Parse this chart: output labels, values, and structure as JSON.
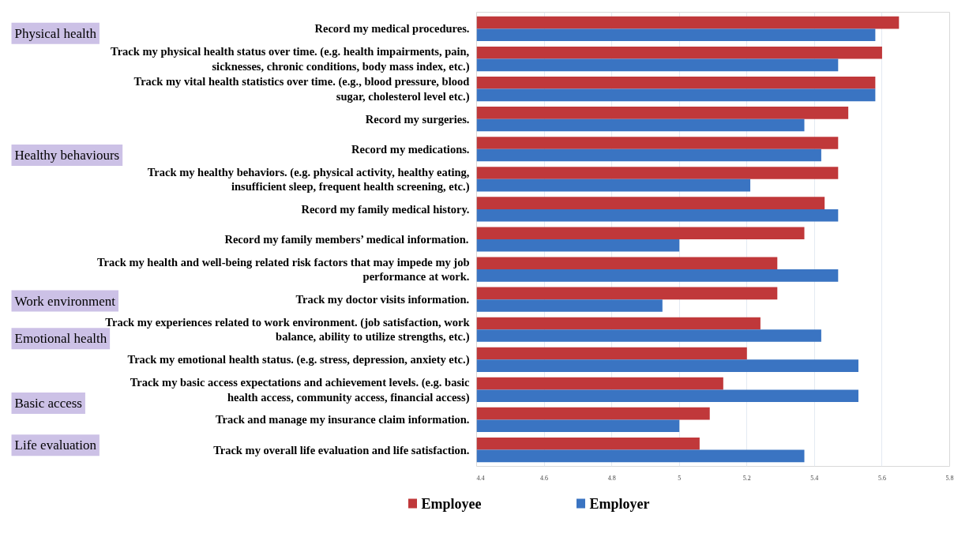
{
  "chart_data": {
    "type": "bar",
    "orientation": "horizontal",
    "categories": [
      "Record my medical procedures.",
      "Track my physical health status over time. (e.g. health impairments, pain, sicknesses, chronic conditions, body mass index, etc.)",
      "Track my vital health statistics over time. (e.g., blood pressure, blood sugar, cholesterol level etc.)",
      "Record my surgeries.",
      "Record my medications.",
      "Track my healthy behaviors. (e.g. physical activity, healthy eating, insufficient sleep, frequent health screening, etc.)",
      "Record my family medical history.",
      "Record my family members’ medical information.",
      "Track my health and well-being related risk factors that may impede my job performance at work.",
      "Track my doctor visits information.",
      "Track my experiences related to work environment. (job satisfaction, work balance, ability to utilize strengths, etc.)",
      "Track my emotional health status. (e.g. stress, depression, anxiety etc.)",
      "Track my basic access expectations and achievement levels. (e.g. basic health access, community access, financial access)",
      "Track and manage my insurance claim information.",
      "Track my overall life evaluation and life satisfaction."
    ],
    "series": [
      {
        "name": "Employee",
        "color": "#c0383a",
        "values": [
          5.65,
          5.6,
          5.58,
          5.5,
          5.47,
          5.47,
          5.43,
          5.37,
          5.29,
          5.29,
          5.24,
          5.2,
          5.13,
          5.09,
          5.06
        ]
      },
      {
        "name": "Employer",
        "color": "#3a74c2",
        "values": [
          5.58,
          5.47,
          5.58,
          5.37,
          5.42,
          5.21,
          5.47,
          5.0,
          5.47,
          4.95,
          5.42,
          5.53,
          5.53,
          5.0,
          5.37
        ]
      }
    ],
    "xlim": [
      4.4,
      5.8
    ],
    "xticks": [
      4.4,
      4.6,
      4.8,
      5,
      5.2,
      5.4,
      5.6,
      5.8
    ],
    "grid": "x",
    "legend": "bottom",
    "annotations": [
      "Physical health",
      "Healthy behaviours",
      "Work environment",
      "Emotional health",
      "Basic access",
      "Life evaluation"
    ]
  }
}
